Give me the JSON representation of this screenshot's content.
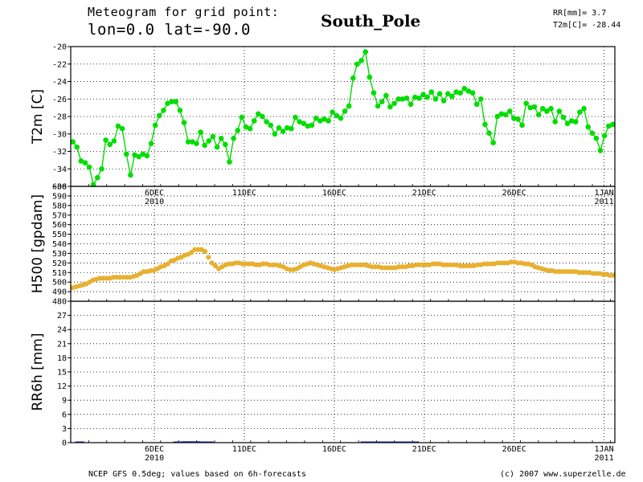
{
  "header": {
    "line1": "Meteogram for grid point:",
    "line2": "lon=0.0 lat=-90.0",
    "station": "South_Pole",
    "summary_rr": "RR[mm]= 3.7",
    "summary_t2m": "T2m[C]= -28.44"
  },
  "footer": {
    "left": "NCEP GFS 0.5deg; values based on 6h-forecasts",
    "right": "(c) 2007 www.superzelle.de"
  },
  "colors": {
    "t2m": "#00dd00",
    "h500": "#e8b030",
    "rr": "#2030e0",
    "axis": "#000000"
  },
  "chart_data": [
    {
      "type": "line",
      "ylabel": "T2m [C]",
      "ylim": [
        -36,
        -20
      ],
      "yticks": [
        -20,
        -22,
        -24,
        -26,
        -28,
        -30,
        -32,
        -34,
        -36
      ],
      "xlim": [
        0,
        121
      ],
      "xtick_positions": [
        18.6,
        38.6,
        58.6,
        78.6,
        98.6,
        118.6
      ],
      "xtick_labels": [
        "6DEC",
        "11DEC",
        "16DEC",
        "21DEC",
        "26DEC",
        "1JAN"
      ],
      "xtick_sublabels": [
        "2010",
        "",
        "",
        "",
        "",
        "2011"
      ],
      "grid": true,
      "series": [
        {
          "values": [
            -30.9,
            -31.5,
            -33.1,
            -33.3,
            -33.8,
            -35.8,
            -35,
            -34,
            -30.7,
            -31.2,
            -30.8,
            -29.1,
            -29.4,
            -32.3,
            -34.7,
            -32.4,
            -32.6,
            -32.3,
            -32.5,
            -31.1,
            -29,
            -27.9,
            -27.3,
            -26.5,
            -26.3,
            -26.3,
            -27.3,
            -28.7,
            -30.9,
            -30.9,
            -31.1,
            -29.8,
            -31.3,
            -30.8,
            -30.3,
            -31.5,
            -30.5,
            -31.2,
            -33.2,
            -30.5,
            -29.6,
            -28.1,
            -29.2,
            -29.4,
            -28.5,
            -27.7,
            -28,
            -28.6,
            -29,
            -30,
            -29.3,
            -29.7,
            -29.3,
            -29.4,
            -28.1,
            -28.6,
            -28.8,
            -29.1,
            -29,
            -28.2,
            -28.5,
            -28.3,
            -28.5,
            -27.5,
            -27.9,
            -28.2,
            -27.4,
            -26.8,
            -23.6,
            -22,
            -21.6,
            -20.6,
            -23.5,
            -25.3,
            -26.8,
            -26.3,
            -25.6,
            -26.9,
            -26.5,
            -26,
            -26,
            -25.9,
            -26.6,
            -25.8,
            -25.9,
            -25.5,
            -25.8,
            -25.2,
            -26,
            -25.4,
            -26.2,
            -25.4,
            -25.7,
            -25.2,
            -25.3,
            -24.8,
            -25.1,
            -25.3,
            -26.6,
            -26,
            -28.9,
            -29.9,
            -31,
            -28,
            -27.7,
            -27.8,
            -27.4,
            -28.2,
            -28.3,
            -29,
            -26.5,
            -27,
            -26.9,
            -27.8,
            -27.1,
            -27.4,
            -27.1,
            -28.6,
            -27.4,
            -28.1,
            -28.8,
            -28.5,
            -28.6,
            -27.5,
            -27.1,
            -29.2,
            -29.9,
            -30.5,
            -31.9,
            -30.2,
            -29.1,
            -28.9
          ]
        }
      ]
    },
    {
      "type": "line",
      "ylabel": "H500 [gpdam]",
      "ylim": [
        480,
        600
      ],
      "yticks": [
        480,
        490,
        500,
        510,
        520,
        530,
        540,
        550,
        560,
        570,
        580,
        590,
        600
      ],
      "grid": true,
      "series": [
        {
          "values": [
            494,
            495,
            496,
            497,
            498,
            500,
            502,
            503,
            504,
            504,
            504,
            504,
            505,
            505,
            505,
            505,
            505,
            505,
            506,
            507,
            509,
            511,
            511,
            512,
            512,
            514,
            516,
            517,
            519,
            522,
            523,
            525,
            526,
            528,
            529,
            531,
            534,
            534,
            534,
            532,
            526,
            520,
            517,
            514,
            516,
            518,
            519,
            519,
            520,
            520,
            519,
            519,
            519,
            519,
            518,
            518,
            519,
            519,
            518,
            518,
            518,
            517,
            516,
            514,
            513,
            513,
            514,
            516,
            518,
            519,
            520,
            519,
            518,
            517,
            516,
            515,
            514,
            513,
            514,
            515,
            516,
            517,
            518,
            518,
            518,
            518,
            518,
            517,
            516,
            516,
            516,
            515,
            515,
            515,
            515,
            515,
            516,
            516,
            516,
            517,
            517,
            518,
            518,
            518,
            518,
            518,
            519,
            519,
            519,
            518,
            518,
            518,
            518,
            518,
            517,
            517,
            517,
            517,
            517,
            518,
            518,
            519,
            519,
            519,
            519,
            520,
            520,
            520,
            520,
            521,
            521,
            520,
            520,
            519,
            519,
            518,
            516,
            515,
            514,
            513,
            512,
            512,
            511,
            511,
            511,
            511,
            511,
            511,
            511,
            510,
            510,
            510,
            510,
            509,
            509,
            509,
            508,
            508,
            507,
            507
          ]
        }
      ]
    },
    {
      "type": "bar",
      "ylabel": "RR6h [mm]",
      "ylim": [
        0,
        30
      ],
      "yticks": [
        0,
        3,
        6,
        9,
        12,
        15,
        18,
        21,
        24,
        27
      ],
      "grid": true,
      "series": [
        {
          "values": [
            0,
            0.1,
            0.1,
            0,
            0,
            0,
            0,
            0,
            0,
            0,
            0,
            0,
            0,
            0,
            0,
            0,
            0,
            0,
            0,
            0,
            0,
            0,
            0,
            0.1,
            0.2,
            0.3,
            0.3,
            0.3,
            0.3,
            0.2,
            0.2,
            0.1,
            0,
            0,
            0,
            0,
            0,
            0,
            0,
            0,
            0,
            0,
            0,
            0,
            0,
            0,
            0,
            0,
            0,
            0,
            0,
            0,
            0,
            0,
            0,
            0,
            0,
            0,
            0,
            0,
            0,
            0,
            0,
            0,
            0,
            0.1,
            0.2,
            0.2,
            0.2,
            0.2,
            0.2,
            0.2,
            0.2,
            0.1,
            0.1,
            0.1,
            0.1,
            0.1,
            0,
            0,
            0,
            0,
            0,
            0,
            0,
            0,
            0,
            0,
            0,
            0,
            0,
            0,
            0,
            0,
            0,
            0,
            0,
            0,
            0,
            0,
            0,
            0,
            0,
            0,
            0,
            0,
            0,
            0,
            0,
            0,
            0,
            0,
            0,
            0,
            0,
            0,
            0,
            0,
            0,
            0,
            0,
            0
          ]
        }
      ]
    }
  ]
}
